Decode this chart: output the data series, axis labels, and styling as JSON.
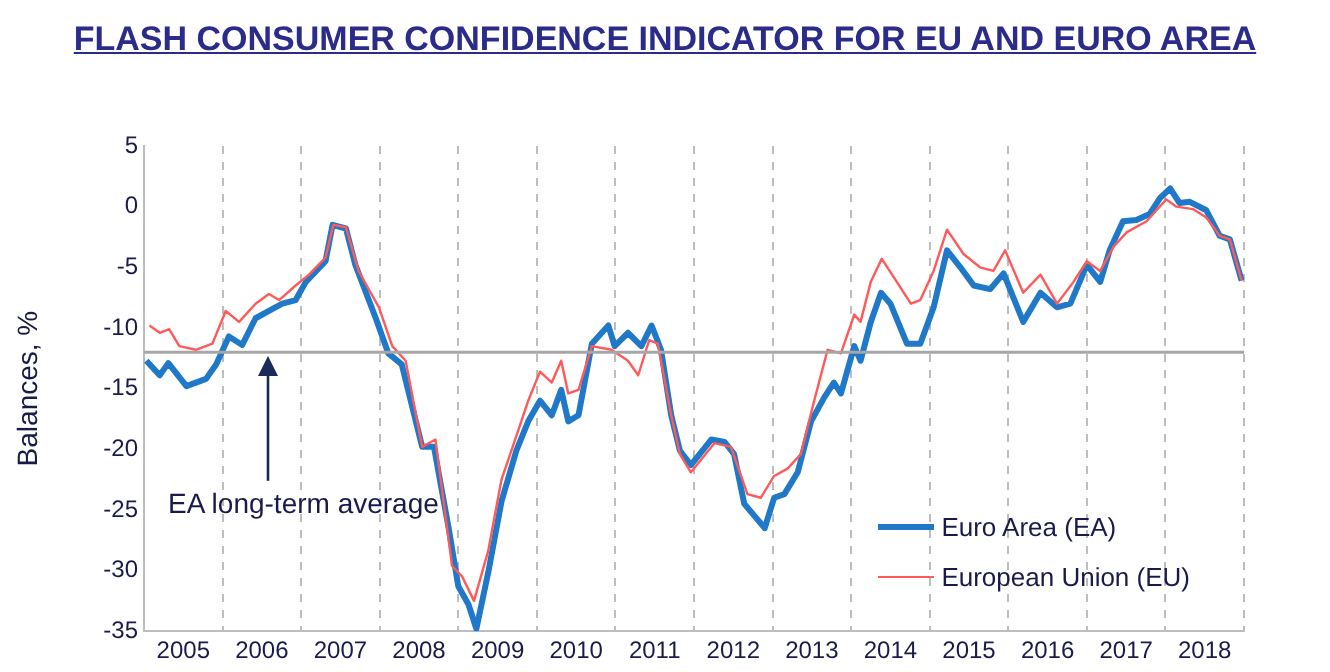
{
  "chart_data": {
    "type": "line",
    "title": "FLASH CONSUMER CONFIDENCE INDICATOR FOR EU AND EURO AREA",
    "ylabel": "Balances, %",
    "xlim": [
      2005,
      2019
    ],
    "xticks": [
      {
        "value": 2005.5,
        "label": "2005"
      },
      {
        "value": 2006,
        "label": null
      },
      {
        "value": 2006.5,
        "label": "2006"
      },
      {
        "value": 2007,
        "label": null
      },
      {
        "value": 2007.5,
        "label": "2007"
      },
      {
        "value": 2008,
        "label": null
      },
      {
        "value": 2008.5,
        "label": "2008"
      },
      {
        "value": 2009,
        "label": null
      },
      {
        "value": 2009.5,
        "label": "2009"
      },
      {
        "value": 2010,
        "label": null
      },
      {
        "value": 2010.5,
        "label": "2010"
      },
      {
        "value": 2011,
        "label": null
      },
      {
        "value": 2011.5,
        "label": "2011"
      },
      {
        "value": 2012,
        "label": null
      },
      {
        "value": 2012.5,
        "label": "2012"
      },
      {
        "value": 2013,
        "label": null
      },
      {
        "value": 2013.5,
        "label": "2013"
      },
      {
        "value": 2014,
        "label": null
      },
      {
        "value": 2014.5,
        "label": "2014"
      },
      {
        "value": 2015,
        "label": null
      },
      {
        "value": 2015.5,
        "label": "2015"
      },
      {
        "value": 2016,
        "label": null
      },
      {
        "value": 2016.5,
        "label": "2016"
      },
      {
        "value": 2017,
        "label": null
      },
      {
        "value": 2017.5,
        "label": "2017"
      },
      {
        "value": 2018,
        "label": null
      },
      {
        "value": 2018.5,
        "label": "2018"
      },
      {
        "value": 2019,
        "label": null
      }
    ],
    "ylim": [
      -35,
      5
    ],
    "yticks": [
      -35,
      -30,
      -25,
      -20,
      -15,
      -10,
      -5,
      0,
      5
    ],
    "grid": "x",
    "legend": "bottom right",
    "marker": "none",
    "line_style": "solid",
    "ref_lines": [
      {
        "axis": "y",
        "value": -12,
        "color": "#a6a6a6"
      }
    ],
    "annotations": [
      "EA long-term average"
    ],
    "series": [
      {
        "name": "Euro Area (EA)",
        "color": "#1f78c8",
        "x": [
          2005.03,
          2005.2,
          2005.31,
          2005.54,
          2005.79,
          2005.92,
          2006.08,
          2006.25,
          2006.42,
          2006.59,
          2006.76,
          2006.93,
          2007.06,
          2007.31,
          2007.4,
          2007.57,
          2007.69,
          2007.95,
          2008.11,
          2008.28,
          2008.54,
          2008.69,
          2008.88,
          2009.0,
          2009.13,
          2009.23,
          2009.38,
          2009.55,
          2009.74,
          2009.89,
          2010.04,
          2010.19,
          2010.31,
          2010.4,
          2010.53,
          2010.7,
          2010.91,
          2010.99,
          2011.16,
          2011.33,
          2011.46,
          2011.58,
          2011.71,
          2011.82,
          2011.96,
          2012.22,
          2012.39,
          2012.51,
          2012.64,
          2012.9,
          2013.02,
          2013.15,
          2013.32,
          2013.49,
          2013.66,
          2013.78,
          2013.87,
          2014.04,
          2014.12,
          2014.25,
          2014.38,
          2014.5,
          2014.71,
          2014.88,
          2015.05,
          2015.22,
          2015.39,
          2015.56,
          2015.77,
          2015.94,
          2016.19,
          2016.41,
          2016.62,
          2016.79,
          2017.0,
          2017.17,
          2017.29,
          2017.46,
          2017.63,
          2017.8,
          2017.93,
          2018.06,
          2018.18,
          2018.31,
          2018.52,
          2018.69,
          2018.82,
          2018.97
        ],
        "values": [
          -12.7,
          -13.9,
          -12.9,
          -14.8,
          -14.2,
          -13.0,
          -10.7,
          -11.4,
          -9.2,
          -8.6,
          -8.0,
          -7.7,
          -6.2,
          -4.5,
          -1.5,
          -1.8,
          -4.8,
          -9.2,
          -12.1,
          -13.0,
          -19.8,
          -19.8,
          -26.6,
          -31.3,
          -32.8,
          -34.8,
          -30.2,
          -24.3,
          -20.1,
          -17.7,
          -16.0,
          -17.2,
          -15.1,
          -17.7,
          -17.2,
          -11.3,
          -9.8,
          -11.5,
          -10.4,
          -11.5,
          -9.8,
          -11.8,
          -17.2,
          -20.1,
          -21.3,
          -19.2,
          -19.4,
          -20.4,
          -24.5,
          -26.5,
          -24.0,
          -23.7,
          -21.9,
          -17.7,
          -15.7,
          -14.5,
          -15.4,
          -11.5,
          -12.7,
          -9.5,
          -7.1,
          -8.0,
          -11.3,
          -11.3,
          -8.3,
          -3.6,
          -5.0,
          -6.5,
          -6.8,
          -5.5,
          -9.5,
          -7.1,
          -8.3,
          -8.0,
          -4.8,
          -6.2,
          -3.6,
          -1.2,
          -1.1,
          -0.6,
          0.7,
          1.5,
          0.3,
          0.4,
          -0.3,
          -2.4,
          -2.7,
          -6.1
        ]
      },
      {
        "name": "European Union (EU)",
        "color": "#ff5a5a",
        "x": [
          2005.07,
          2005.2,
          2005.32,
          2005.45,
          2005.66,
          2005.87,
          2006.04,
          2006.21,
          2006.42,
          2006.59,
          2006.72,
          2006.93,
          2007.1,
          2007.31,
          2007.41,
          2007.57,
          2007.73,
          2007.99,
          2008.16,
          2008.33,
          2008.54,
          2008.71,
          2008.92,
          2009.05,
          2009.2,
          2009.38,
          2009.55,
          2009.74,
          2009.89,
          2010.04,
          2010.19,
          2010.31,
          2010.4,
          2010.53,
          2010.7,
          2010.95,
          2011.16,
          2011.29,
          2011.43,
          2011.54,
          2011.71,
          2011.82,
          2011.96,
          2012.26,
          2012.47,
          2012.68,
          2012.85,
          2013.02,
          2013.19,
          2013.36,
          2013.53,
          2013.7,
          2013.87,
          2014.04,
          2014.12,
          2014.25,
          2014.39,
          2014.55,
          2014.76,
          2014.88,
          2015.05,
          2015.22,
          2015.43,
          2015.64,
          2015.81,
          2015.96,
          2016.19,
          2016.41,
          2016.62,
          2016.83,
          2017.0,
          2017.17,
          2017.34,
          2017.51,
          2017.76,
          2018.01,
          2018.14,
          2018.35,
          2018.52,
          2018.69,
          2018.82,
          2018.97
        ],
        "values": [
          -9.8,
          -10.4,
          -10.1,
          -11.5,
          -11.8,
          -11.3,
          -8.6,
          -9.5,
          -8.0,
          -7.2,
          -7.7,
          -6.5,
          -5.6,
          -4.2,
          -1.5,
          -1.7,
          -5.3,
          -8.3,
          -11.5,
          -12.7,
          -19.8,
          -19.2,
          -29.6,
          -30.5,
          -32.5,
          -28.4,
          -22.5,
          -18.9,
          -16.0,
          -13.6,
          -14.5,
          -12.7,
          -15.4,
          -15.1,
          -11.5,
          -11.8,
          -12.7,
          -13.9,
          -11.0,
          -11.3,
          -17.2,
          -20.4,
          -21.9,
          -19.5,
          -19.8,
          -23.7,
          -24.0,
          -22.2,
          -21.6,
          -20.4,
          -16.0,
          -11.8,
          -12.1,
          -8.9,
          -9.5,
          -6.2,
          -4.3,
          -5.9,
          -8.0,
          -7.7,
          -5.3,
          -1.9,
          -3.9,
          -5.0,
          -5.3,
          -3.6,
          -7.1,
          -5.6,
          -8.0,
          -6.2,
          -4.5,
          -5.3,
          -3.3,
          -2.1,
          -1.2,
          0.6,
          0.0,
          -0.2,
          -0.9,
          -2.4,
          -2.7,
          -6.1
        ]
      }
    ]
  }
}
